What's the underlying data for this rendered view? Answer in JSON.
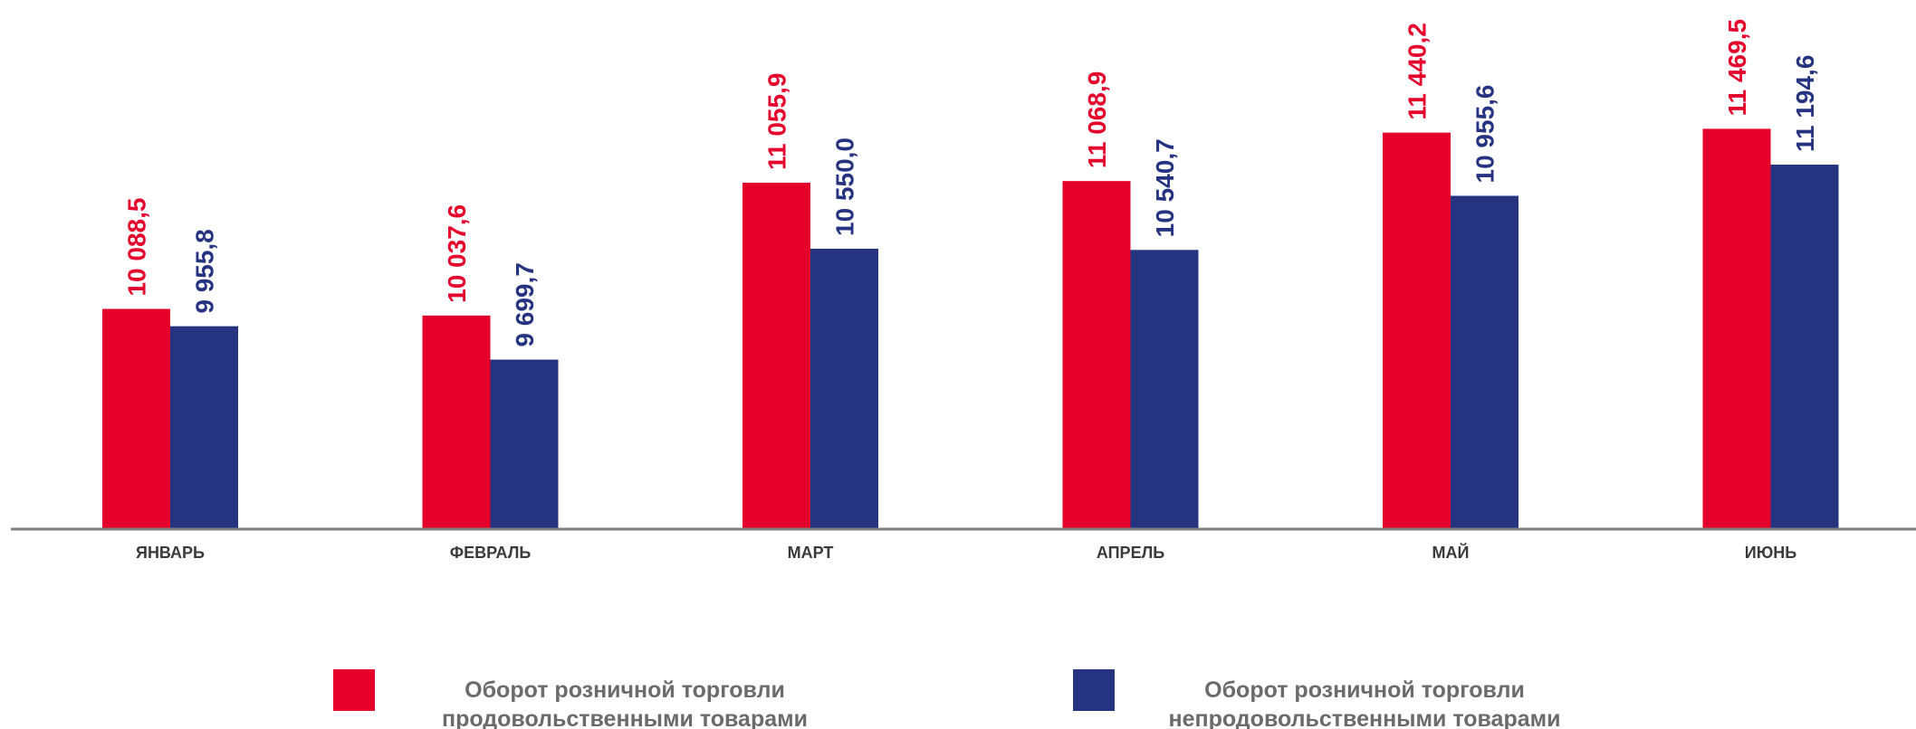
{
  "chart_data": {
    "type": "bar",
    "categories": [
      "ЯНВАРЬ",
      "ФЕВРАЛЬ",
      "МАРТ",
      "АПРЕЛЬ",
      "МАЙ",
      "ИЮНЬ"
    ],
    "series": [
      {
        "name": "Оборот розничной торговли продовольственными товарами",
        "legend_lines": [
          "Оборот розничной торговли",
          "продовольственными товарами"
        ],
        "color": "#e4002b",
        "values": [
          10088.5,
          10037.6,
          11055.9,
          11068.9,
          11440.2,
          11469.5
        ],
        "labels": [
          "10 088,5",
          "10 037,6",
          "11 055,9",
          "11 068,9",
          "11 440,2",
          "11 469,5"
        ]
      },
      {
        "name": "Оборот розничной торговли непродовольственными товарами",
        "legend_lines": [
          "Оборот розничной торговли",
          "непродовольственными товарами"
        ],
        "color": "#263381",
        "values": [
          9955.8,
          9699.7,
          10550.0,
          10540.7,
          10955.6,
          11194.6
        ],
        "labels": [
          "9 955,8",
          "9 699,7",
          "10 550,0",
          "10 540,7",
          "10 955,6",
          "11 194,6"
        ]
      }
    ],
    "title": "",
    "xlabel": "",
    "ylabel": "",
    "ylim": [
      8400,
      11500
    ],
    "grid": false,
    "legend_position": "bottom",
    "axis_color": "#7f7f7f",
    "label_color_text": "#3a3a3a"
  }
}
